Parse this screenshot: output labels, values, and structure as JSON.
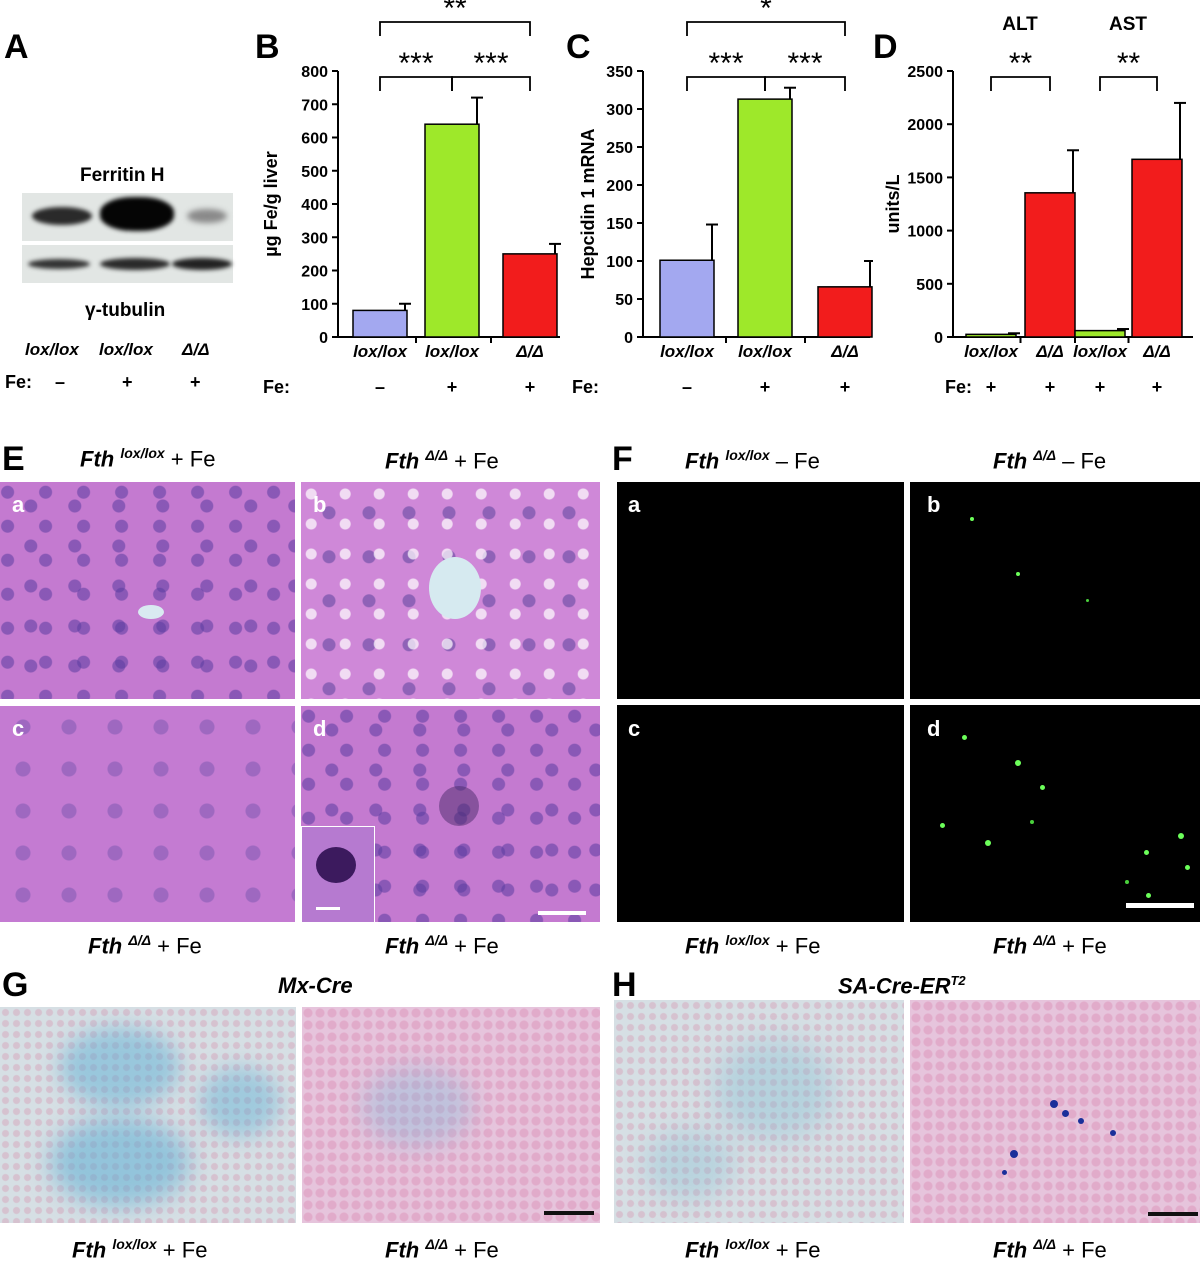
{
  "panels": {
    "A": {
      "label": "A",
      "blot_title": "Ferritin H",
      "loading_label": "γ-tubulin",
      "lanes": [
        "lox/lox",
        "lox/lox",
        "Δ/Δ"
      ],
      "fe_label": "Fe:",
      "fe": [
        "–",
        "+",
        "+"
      ]
    },
    "E": {
      "label": "E",
      "top_left_caption": {
        "gene": "Fth",
        "sup": "lox/lox",
        "rest": " + Fe"
      },
      "top_right_caption": {
        "gene": "Fth",
        "sup": "Δ/Δ",
        "rest": " + Fe"
      },
      "bottom_left_caption": {
        "gene": "Fth",
        "sup": "Δ/Δ",
        "rest": " + Fe"
      },
      "bottom_right_caption": {
        "gene": "Fth",
        "sup": "Δ/Δ",
        "rest": " + Fe"
      },
      "sub": [
        "a",
        "b",
        "c",
        "d"
      ]
    },
    "F": {
      "label": "F",
      "top_left_caption": {
        "gene": "Fth",
        "sup": "lox/lox",
        "rest": " – Fe"
      },
      "top_right_caption": {
        "gene": "Fth",
        "sup": "Δ/Δ",
        "rest": " – Fe"
      },
      "bottom_left_caption": {
        "gene": "Fth",
        "sup": "lox/lox",
        "rest": " + Fe"
      },
      "bottom_right_caption": {
        "gene": "Fth",
        "sup": "Δ/Δ",
        "rest": " + Fe"
      },
      "sub": [
        "a",
        "b",
        "c",
        "d"
      ]
    },
    "G": {
      "label": "G",
      "title": "Mx-Cre",
      "left_caption": {
        "gene": "Fth",
        "sup": "lox/lox",
        "rest": " + Fe"
      },
      "right_caption": {
        "gene": "Fth",
        "sup": "Δ/Δ",
        "rest": " + Fe"
      }
    },
    "H": {
      "label": "H",
      "title": "SA-Cre-ER",
      "title_sup": "T2",
      "left_caption": {
        "gene": "Fth",
        "sup": "lox/lox",
        "rest": " + Fe"
      },
      "right_caption": {
        "gene": "Fth",
        "sup": "Δ/Δ",
        "rest": " + Fe"
      }
    }
  },
  "chart_data": [
    {
      "panel": "B",
      "type": "bar",
      "categories": [
        "lox/lox",
        "lox/lox",
        "Δ/Δ"
      ],
      "fe_label": "Fe:",
      "fe": [
        "–",
        "+",
        "+"
      ],
      "values": [
        80,
        640,
        250
      ],
      "errors": [
        20,
        80,
        30
      ],
      "colors": [
        "#a3a8f0",
        "#9ee82a",
        "#f21c1c"
      ],
      "ylabel": "µg Fe/g liver",
      "ylim": [
        0,
        800
      ],
      "yticks": [
        0,
        100,
        200,
        300,
        400,
        500,
        600,
        700,
        800
      ],
      "significance": [
        {
          "from": 0,
          "to": 1,
          "label": "***"
        },
        {
          "from": 1,
          "to": 2,
          "label": "***"
        },
        {
          "from": 0,
          "to": 2,
          "label": "**"
        }
      ]
    },
    {
      "panel": "C",
      "type": "bar",
      "categories": [
        "lox/lox",
        "lox/lox",
        "Δ/Δ"
      ],
      "fe_label": "Fe:",
      "fe": [
        "–",
        "+",
        "+"
      ],
      "values": [
        101,
        313,
        66
      ],
      "errors": [
        47,
        15,
        34
      ],
      "colors": [
        "#a3a8f0",
        "#9ee82a",
        "#f21c1c"
      ],
      "ylabel": "Hepcidin 1 mRNA",
      "ylim": [
        0,
        350
      ],
      "yticks": [
        0,
        50,
        100,
        150,
        200,
        250,
        300,
        350
      ],
      "significance": [
        {
          "from": 0,
          "to": 1,
          "label": "***"
        },
        {
          "from": 1,
          "to": 2,
          "label": "***"
        },
        {
          "from": 0,
          "to": 2,
          "label": "*"
        }
      ]
    },
    {
      "panel": "D",
      "type": "bar",
      "groups": [
        "ALT",
        "AST"
      ],
      "categories": [
        "lox/lox",
        "Δ/Δ",
        "lox/lox",
        "Δ/Δ"
      ],
      "fe_label": "Fe:",
      "fe": [
        "+",
        "+",
        "+",
        "+"
      ],
      "values": [
        25,
        1355,
        60,
        1670
      ],
      "errors": [
        10,
        400,
        15,
        530
      ],
      "colors": [
        "#9ee82a",
        "#f21c1c",
        "#9ee82a",
        "#f21c1c"
      ],
      "ylabel": "units/L",
      "ylim": [
        0,
        2500
      ],
      "yticks": [
        0,
        500,
        1000,
        1500,
        2000,
        2500
      ],
      "significance": [
        {
          "from": 0,
          "to": 1,
          "label": "**"
        },
        {
          "from": 2,
          "to": 3,
          "label": "**"
        }
      ]
    }
  ]
}
